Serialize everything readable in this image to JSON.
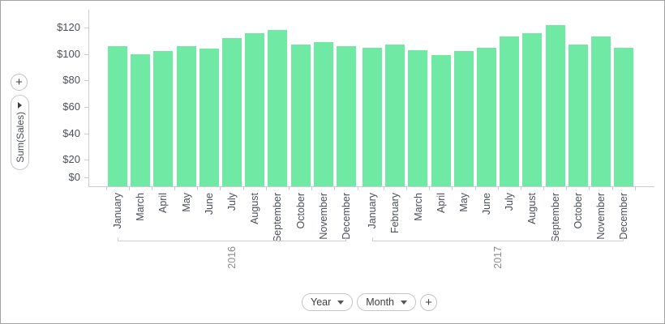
{
  "left_panel": {
    "add_field_button": "+",
    "value_field": {
      "label": "Sum(Sales)"
    }
  },
  "chart_data": {
    "type": "bar",
    "title": "",
    "ylabel": "Sum(Sales)",
    "bar_color": "#70e9a4",
    "grid": "off",
    "legend": "none",
    "y_axis": {
      "min": 0,
      "max": 120,
      "step": 20,
      "prefix": "$",
      "tick_labels": [
        "$120",
        "$100",
        "$80",
        "$60",
        "$40",
        "$20",
        "$0"
      ]
    },
    "x_axis": {
      "group_field": "Year",
      "category_field": "Month"
    },
    "groups": [
      {
        "label": "2016",
        "categories": [
          "January",
          "March",
          "April",
          "May",
          "June",
          "July",
          "August",
          "September",
          "October",
          "November",
          "December"
        ],
        "values": [
          106,
          100,
          102,
          106,
          104,
          112,
          116,
          118,
          107,
          109,
          106
        ]
      },
      {
        "label": "2017",
        "categories": [
          "January",
          "February",
          "March",
          "April",
          "May",
          "June",
          "July",
          "August",
          "September",
          "October",
          "November",
          "December"
        ],
        "values": [
          105,
          107,
          103,
          99,
          102,
          105,
          113,
          116,
          122,
          107,
          113,
          105
        ]
      }
    ]
  },
  "bottom_controls": {
    "fields": [
      {
        "label": "Year"
      },
      {
        "label": "Month"
      }
    ],
    "add_field_button": "+"
  }
}
